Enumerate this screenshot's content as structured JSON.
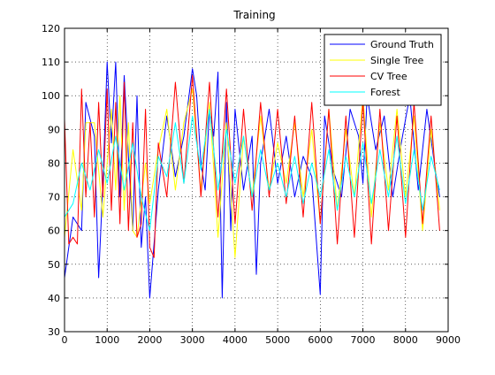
{
  "chart_data": {
    "type": "line",
    "title": "Training",
    "xlabel": "",
    "ylabel": "",
    "xlim": [
      0,
      9000
    ],
    "ylim": [
      30,
      120
    ],
    "xticks": [
      0,
      1000,
      2000,
      3000,
      4000,
      5000,
      6000,
      7000,
      8000,
      9000
    ],
    "yticks": [
      30,
      40,
      50,
      60,
      70,
      80,
      90,
      100,
      110,
      120
    ],
    "grid": true,
    "legend_position": "top-right",
    "series": [
      {
        "name": "Ground Truth",
        "color": "#0000ff",
        "x": [
          0,
          200,
          400,
          500,
          700,
          800,
          900,
          1000,
          1100,
          1200,
          1300,
          1400,
          1500,
          1600,
          1700,
          1800,
          1900,
          2000,
          2200,
          2400,
          2600,
          2800,
          3000,
          3100,
          3200,
          3300,
          3400,
          3500,
          3600,
          3700,
          3800,
          3900,
          4000,
          4200,
          4400,
          4500,
          4600,
          4800,
          5000,
          5200,
          5400,
          5600,
          5800,
          6000,
          6100,
          6300,
          6500,
          6700,
          6900,
          7000,
          7100,
          7300,
          7500,
          7700,
          7900,
          8100,
          8300,
          8500,
          8700,
          8800
        ],
        "y": [
          46,
          64,
          60,
          98,
          88,
          46,
          74,
          110,
          86,
          110,
          70,
          106,
          82,
          60,
          100,
          55,
          70,
          40,
          72,
          94,
          76,
          88,
          108,
          100,
          80,
          72,
          96,
          88,
          107,
          40,
          98,
          60,
          96,
          72,
          88,
          47,
          80,
          96,
          74,
          88,
          70,
          82,
          76,
          41,
          94,
          78,
          70,
          96,
          88,
          74,
          100,
          84,
          94,
          70,
          86,
          100,
          72,
          96,
          78,
          70
        ]
      },
      {
        "name": "Single Tree",
        "color": "#ffff00",
        "x": [
          0,
          200,
          400,
          500,
          700,
          900,
          1000,
          1100,
          1200,
          1300,
          1400,
          1500,
          1600,
          1700,
          1900,
          2000,
          2200,
          2400,
          2600,
          2800,
          3000,
          3200,
          3400,
          3600,
          3800,
          4000,
          4200,
          4400,
          4600,
          4800,
          5000,
          5200,
          5400,
          5600,
          5800,
          6000,
          6200,
          6400,
          6600,
          6800,
          7000,
          7200,
          7400,
          7600,
          7800,
          8000,
          8200,
          8400,
          8600,
          8800
        ],
        "y": [
          58,
          84,
          66,
          92,
          92,
          64,
          80,
          96,
          72,
          100,
          66,
          92,
          60,
          58,
          80,
          68,
          84,
          96,
          72,
          92,
          102,
          72,
          98,
          58,
          92,
          52,
          88,
          70,
          94,
          72,
          86,
          74,
          92,
          70,
          90,
          62,
          96,
          66,
          90,
          70,
          100,
          64,
          92,
          72,
          96,
          70,
          94,
          60,
          90,
          66
        ]
      },
      {
        "name": "CV Tree",
        "color": "#ff0000",
        "x": [
          0,
          100,
          200,
          300,
          400,
          500,
          600,
          700,
          800,
          900,
          1000,
          1100,
          1200,
          1300,
          1400,
          1500,
          1600,
          1700,
          1800,
          1900,
          2000,
          2100,
          2200,
          2400,
          2600,
          2800,
          3000,
          3200,
          3400,
          3600,
          3800,
          4000,
          4200,
          4400,
          4600,
          4800,
          5000,
          5200,
          5400,
          5600,
          5800,
          6000,
          6200,
          6400,
          6600,
          6800,
          7000,
          7200,
          7400,
          7600,
          7800,
          8000,
          8200,
          8400,
          8600,
          8800
        ],
        "y": [
          93,
          56,
          58,
          56,
          102,
          70,
          92,
          64,
          98,
          70,
          102,
          66,
          98,
          62,
          104,
          60,
          92,
          58,
          62,
          96,
          55,
          52,
          86,
          70,
          104,
          74,
          106,
          70,
          104,
          64,
          102,
          62,
          96,
          66,
          98,
          70,
          96,
          68,
          94,
          64,
          98,
          62,
          96,
          56,
          94,
          58,
          98,
          56,
          96,
          60,
          94,
          58,
          98,
          62,
          94,
          60
        ]
      },
      {
        "name": "Forest",
        "color": "#00ffff",
        "x": [
          0,
          200,
          400,
          600,
          800,
          1000,
          1200,
          1400,
          1600,
          1800,
          2000,
          2200,
          2400,
          2600,
          2800,
          3000,
          3200,
          3400,
          3600,
          3800,
          4000,
          4200,
          4400,
          4600,
          4800,
          5000,
          5200,
          5400,
          5600,
          5800,
          6000,
          6200,
          6400,
          6600,
          6800,
          7000,
          7200,
          7400,
          7600,
          7800,
          8000,
          8200,
          8400,
          8600,
          8800
        ],
        "y": [
          64,
          68,
          80,
          72,
          84,
          74,
          88,
          72,
          86,
          70,
          60,
          82,
          76,
          92,
          74,
          94,
          78,
          96,
          72,
          90,
          74,
          88,
          70,
          84,
          72,
          80,
          70,
          82,
          68,
          80,
          70,
          84,
          66,
          82,
          70,
          86,
          68,
          84,
          70,
          88,
          68,
          84,
          66,
          82,
          72
        ]
      }
    ]
  }
}
